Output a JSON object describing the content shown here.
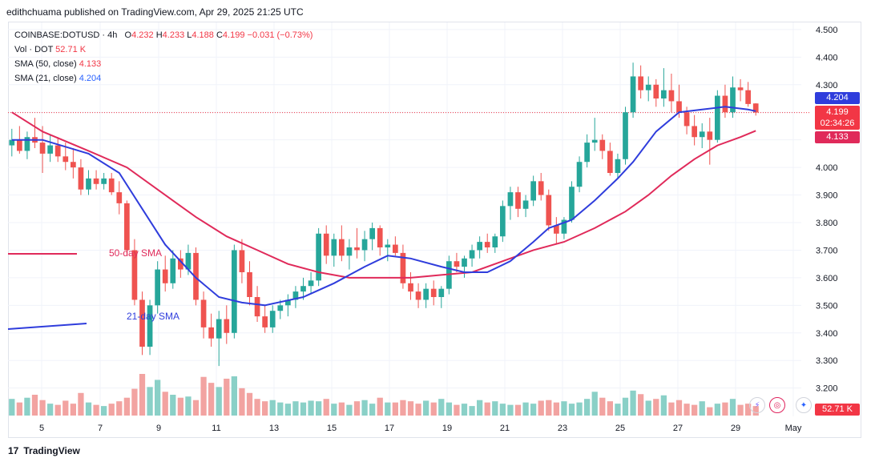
{
  "header": {
    "text": "edithchuama published on TradingView.com, Apr 29, 2025 21:25 UTC"
  },
  "legend": {
    "symbol": "COINBASE:DOTUSD · 4h",
    "ohlc_o_label": "O",
    "ohlc_o": "4.232",
    "ohlc_h_label": "H",
    "ohlc_h": "4.233",
    "ohlc_l_label": "L",
    "ohlc_l": "4.188",
    "ohlc_c_label": "C",
    "ohlc_c": "4.199",
    "ohlc_change": "−0.031 (−0.73%)",
    "vol_label": "Vol · DOT",
    "vol_value": "52.71 K",
    "sma50_label": "SMA (50, close)",
    "sma50_value": "4.133",
    "sma21_label": "SMA (21, close)",
    "sma21_value": "4.204"
  },
  "price_tags": {
    "sma21": "4.204",
    "last": "4.199",
    "countdown": "02:34:26",
    "sma50": "4.133",
    "volume": "52.71 K"
  },
  "annotations": {
    "sma50": "50-day SMA",
    "sma21": "21-day SMA"
  },
  "footer": {
    "brand": "TradingView"
  },
  "colors": {
    "up": "#26a69a",
    "down": "#ef5350",
    "sma21": "#2f3ddc",
    "sma50": "#e02a5a",
    "vol_up": "#8ad0c7",
    "vol_down": "#f2a3a1"
  },
  "chart_data": {
    "type": "candlestick",
    "title": "COINBASE:DOTUSD · 4h",
    "y_ticks": [
      "4.500",
      "4.400",
      "4.300",
      "4.200",
      "4.100",
      "4.000",
      "3.900",
      "3.800",
      "3.700",
      "3.600",
      "3.500",
      "3.400",
      "3.300",
      "3.200"
    ],
    "x_ticks": [
      "5",
      "7",
      "9",
      "11",
      "13",
      "15",
      "17",
      "19",
      "21",
      "23",
      "25",
      "27",
      "29",
      "May"
    ],
    "ylim": [
      3.17,
      4.52
    ],
    "candles": [
      [
        4.08,
        4.14,
        4.04,
        4.1
      ],
      [
        4.1,
        4.15,
        4.05,
        4.06
      ],
      [
        4.06,
        4.13,
        4.03,
        4.11
      ],
      [
        4.11,
        4.18,
        4.07,
        4.09
      ],
      [
        4.09,
        4.15,
        3.98,
        4.05
      ],
      [
        4.05,
        4.12,
        4.02,
        4.08
      ],
      [
        4.08,
        4.11,
        4.02,
        4.04
      ],
      [
        4.04,
        4.09,
        3.99,
        4.02
      ],
      [
        4.02,
        4.07,
        3.96,
        4.0
      ],
      [
        4.0,
        4.03,
        3.9,
        3.92
      ],
      [
        3.92,
        3.99,
        3.9,
        3.96
      ],
      [
        3.96,
        3.99,
        3.92,
        3.94
      ],
      [
        3.94,
        3.98,
        3.92,
        3.96
      ],
      [
        3.96,
        3.98,
        3.9,
        3.91
      ],
      [
        3.91,
        3.95,
        3.83,
        3.87
      ],
      [
        3.87,
        3.88,
        3.68,
        3.7
      ],
      [
        3.7,
        3.74,
        3.5,
        3.52
      ],
      [
        3.52,
        3.55,
        3.32,
        3.35
      ],
      [
        3.35,
        3.52,
        3.32,
        3.5
      ],
      [
        3.5,
        3.66,
        3.47,
        3.63
      ],
      [
        3.63,
        3.68,
        3.55,
        3.58
      ],
      [
        3.58,
        3.7,
        3.56,
        3.67
      ],
      [
        3.67,
        3.7,
        3.6,
        3.63
      ],
      [
        3.63,
        3.72,
        3.61,
        3.69
      ],
      [
        3.69,
        3.71,
        3.5,
        3.52
      ],
      [
        3.52,
        3.55,
        3.38,
        3.42
      ],
      [
        3.42,
        3.47,
        3.35,
        3.38
      ],
      [
        3.38,
        3.48,
        3.28,
        3.45
      ],
      [
        3.45,
        3.5,
        3.36,
        3.4
      ],
      [
        3.4,
        3.72,
        3.38,
        3.7
      ],
      [
        3.7,
        3.74,
        3.58,
        3.62
      ],
      [
        3.62,
        3.66,
        3.5,
        3.53
      ],
      [
        3.53,
        3.57,
        3.44,
        3.46
      ],
      [
        3.46,
        3.5,
        3.4,
        3.42
      ],
      [
        3.42,
        3.5,
        3.4,
        3.48
      ],
      [
        3.48,
        3.52,
        3.45,
        3.5
      ],
      [
        3.5,
        3.54,
        3.46,
        3.52
      ],
      [
        3.52,
        3.57,
        3.49,
        3.55
      ],
      [
        3.55,
        3.6,
        3.52,
        3.57
      ],
      [
        3.57,
        3.62,
        3.54,
        3.59
      ],
      [
        3.59,
        3.78,
        3.57,
        3.76
      ],
      [
        3.76,
        3.79,
        3.65,
        3.68
      ],
      [
        3.68,
        3.76,
        3.64,
        3.74
      ],
      [
        3.74,
        3.79,
        3.66,
        3.68
      ],
      [
        3.68,
        3.74,
        3.63,
        3.71
      ],
      [
        3.71,
        3.78,
        3.67,
        3.7
      ],
      [
        3.7,
        3.77,
        3.66,
        3.74
      ],
      [
        3.74,
        3.8,
        3.7,
        3.78
      ],
      [
        3.78,
        3.79,
        3.68,
        3.71
      ],
      [
        3.71,
        3.74,
        3.66,
        3.72
      ],
      [
        3.72,
        3.75,
        3.68,
        3.69
      ],
      [
        3.69,
        3.72,
        3.56,
        3.58
      ],
      [
        3.58,
        3.62,
        3.52,
        3.55
      ],
      [
        3.55,
        3.58,
        3.49,
        3.52
      ],
      [
        3.52,
        3.58,
        3.49,
        3.56
      ],
      [
        3.56,
        3.59,
        3.5,
        3.53
      ],
      [
        3.53,
        3.57,
        3.49,
        3.56
      ],
      [
        3.56,
        3.68,
        3.54,
        3.66
      ],
      [
        3.66,
        3.69,
        3.62,
        3.64
      ],
      [
        3.64,
        3.68,
        3.6,
        3.67
      ],
      [
        3.67,
        3.72,
        3.64,
        3.7
      ],
      [
        3.7,
        3.75,
        3.67,
        3.73
      ],
      [
        3.73,
        3.76,
        3.69,
        3.71
      ],
      [
        3.71,
        3.76,
        3.69,
        3.75
      ],
      [
        3.75,
        3.88,
        3.73,
        3.86
      ],
      [
        3.86,
        3.93,
        3.81,
        3.91
      ],
      [
        3.91,
        3.93,
        3.82,
        3.85
      ],
      [
        3.85,
        3.9,
        3.82,
        3.88
      ],
      [
        3.88,
        3.97,
        3.86,
        3.95
      ],
      [
        3.95,
        3.98,
        3.88,
        3.9
      ],
      [
        3.9,
        3.92,
        3.77,
        3.79
      ],
      [
        3.79,
        3.82,
        3.72,
        3.76
      ],
      [
        3.76,
        3.82,
        3.74,
        3.81
      ],
      [
        3.81,
        3.95,
        3.8,
        3.93
      ],
      [
        3.93,
        4.04,
        3.91,
        4.02
      ],
      [
        4.02,
        4.12,
        4.0,
        4.09
      ],
      [
        4.09,
        4.18,
        4.06,
        4.1
      ],
      [
        4.1,
        4.12,
        4.03,
        4.06
      ],
      [
        4.06,
        4.09,
        3.97,
        3.98
      ],
      [
        3.98,
        4.05,
        3.96,
        4.03
      ],
      [
        4.03,
        4.22,
        4.01,
        4.2
      ],
      [
        4.2,
        4.38,
        4.18,
        4.33
      ],
      [
        4.33,
        4.37,
        4.25,
        4.28
      ],
      [
        4.28,
        4.33,
        4.24,
        4.3
      ],
      [
        4.3,
        4.32,
        4.22,
        4.25
      ],
      [
        4.25,
        4.36,
        4.22,
        4.28
      ],
      [
        4.28,
        4.34,
        4.2,
        4.24
      ],
      [
        4.24,
        4.3,
        4.18,
        4.2
      ],
      [
        4.2,
        4.22,
        4.12,
        4.15
      ],
      [
        4.15,
        4.19,
        4.08,
        4.11
      ],
      [
        4.11,
        4.16,
        4.07,
        4.13
      ],
      [
        4.13,
        4.18,
        4.01,
        4.1
      ],
      [
        4.1,
        4.28,
        4.09,
        4.26
      ],
      [
        4.26,
        4.3,
        4.18,
        4.2
      ],
      [
        4.2,
        4.33,
        4.18,
        4.29
      ],
      [
        4.29,
        4.32,
        4.24,
        4.28
      ],
      [
        4.28,
        4.31,
        4.22,
        4.23
      ],
      [
        4.232,
        4.233,
        4.188,
        4.199
      ]
    ],
    "volumes": [
      28,
      22,
      30,
      35,
      26,
      20,
      18,
      25,
      20,
      38,
      22,
      18,
      16,
      20,
      24,
      30,
      45,
      70,
      48,
      60,
      40,
      35,
      30,
      32,
      26,
      65,
      55,
      48,
      62,
      66,
      46,
      38,
      28,
      24,
      26,
      22,
      20,
      24,
      22,
      25,
      24,
      28,
      20,
      22,
      18,
      24,
      26,
      20,
      30,
      22,
      22,
      26,
      24,
      20,
      25,
      22,
      28,
      22,
      18,
      20,
      16,
      26,
      22,
      24,
      20,
      18,
      18,
      22,
      20,
      25,
      26,
      22,
      24,
      20,
      22,
      28,
      40,
      30,
      24,
      20,
      30,
      42,
      36,
      25,
      28,
      34,
      22,
      26,
      20,
      18,
      24,
      14,
      20,
      22,
      28,
      18,
      20,
      16
    ],
    "sma21": [
      [
        0,
        4.1
      ],
      [
        4,
        4.1
      ],
      [
        10,
        4.05
      ],
      [
        14,
        3.98
      ],
      [
        17,
        3.85
      ],
      [
        20,
        3.72
      ],
      [
        24,
        3.6
      ],
      [
        27,
        3.53
      ],
      [
        30,
        3.51
      ],
      [
        33,
        3.5
      ],
      [
        38,
        3.53
      ],
      [
        42,
        3.58
      ],
      [
        46,
        3.64
      ],
      [
        49,
        3.68
      ],
      [
        52,
        3.67
      ],
      [
        56,
        3.64
      ],
      [
        59,
        3.62
      ],
      [
        62,
        3.62
      ],
      [
        65,
        3.66
      ],
      [
        68,
        3.73
      ],
      [
        70,
        3.78
      ],
      [
        73,
        3.81
      ],
      [
        76,
        3.88
      ],
      [
        79,
        3.96
      ],
      [
        81,
        4.02
      ],
      [
        84,
        4.13
      ],
      [
        87,
        4.2
      ],
      [
        90,
        4.21
      ],
      [
        93,
        4.22
      ],
      [
        96,
        4.21
      ],
      [
        97,
        4.204
      ]
    ],
    "sma50": [
      [
        0,
        4.2
      ],
      [
        4,
        4.13
      ],
      [
        10,
        4.06
      ],
      [
        15,
        4.0
      ],
      [
        20,
        3.9
      ],
      [
        24,
        3.82
      ],
      [
        28,
        3.75
      ],
      [
        32,
        3.7
      ],
      [
        36,
        3.65
      ],
      [
        40,
        3.62
      ],
      [
        44,
        3.6
      ],
      [
        48,
        3.6
      ],
      [
        52,
        3.6
      ],
      [
        56,
        3.61
      ],
      [
        60,
        3.62
      ],
      [
        64,
        3.66
      ],
      [
        68,
        3.7
      ],
      [
        72,
        3.73
      ],
      [
        76,
        3.78
      ],
      [
        80,
        3.84
      ],
      [
        83,
        3.9
      ],
      [
        86,
        3.97
      ],
      [
        89,
        4.03
      ],
      [
        92,
        4.08
      ],
      [
        95,
        4.11
      ],
      [
        97,
        4.133
      ]
    ]
  }
}
